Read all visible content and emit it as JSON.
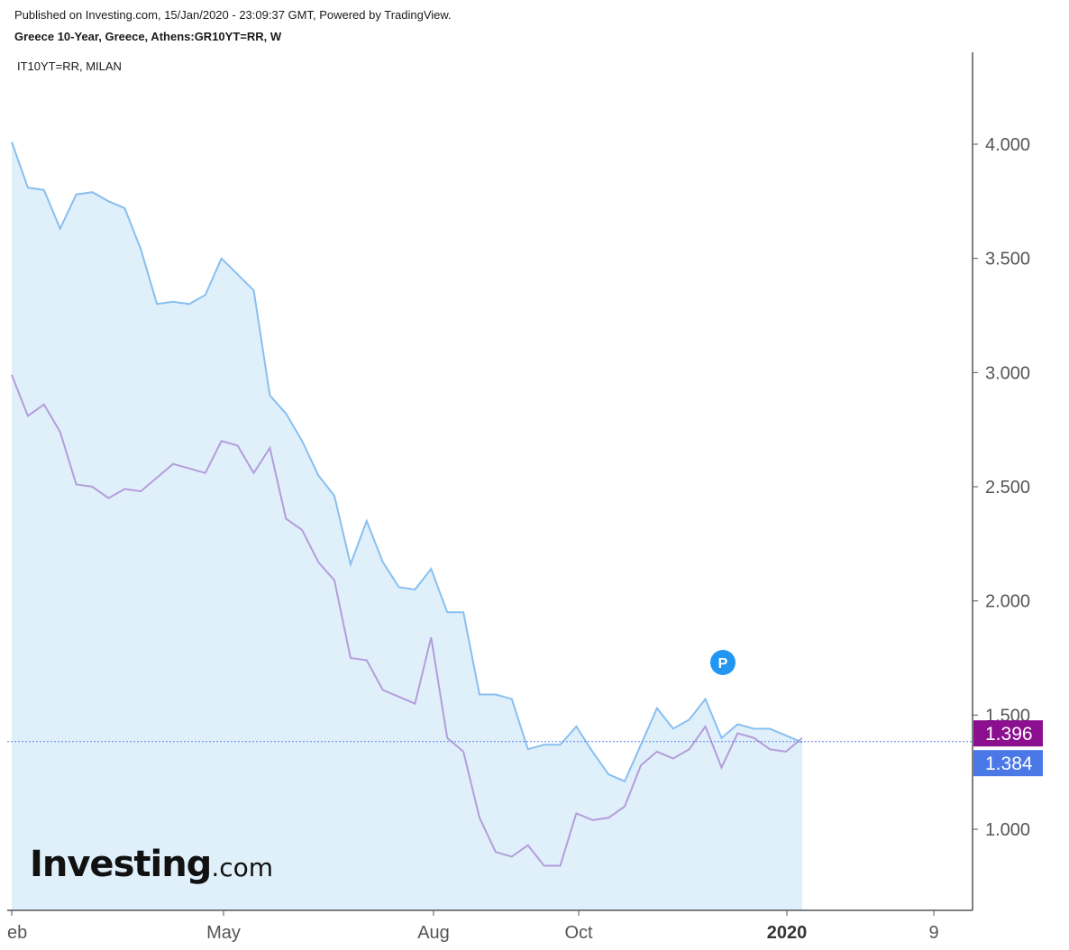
{
  "header": {
    "published": "Published on Investing.com, 15/Jan/2020 - 23:09:37 GMT, Powered by TradingView.",
    "subtitle": "Greece 10-Year, Greece, Athens:GR10YT=RR, W",
    "compare_symbol": "IT10YT=RR, MILAN"
  },
  "logo": {
    "main": "Investing",
    "suffix": ".com"
  },
  "marker": {
    "label": "P",
    "color": "#2196f3"
  },
  "colors": {
    "greece_line": "#88bff0",
    "greece_fill": "#e0f0fa",
    "italy_line": "#b39ddb",
    "italy_tag": "#8b0f8f",
    "greece_tag": "#4a78e6",
    "axis": "#555555",
    "price_line": "#5b7fe8"
  },
  "chart_data": {
    "type": "line",
    "frequency": "weekly",
    "ylim": [
      0.65,
      4.4
    ],
    "y_ticks": [
      "1.000",
      "1.500",
      "2.000",
      "2.500",
      "3.000",
      "3.500",
      "4.000"
    ],
    "x_tick_labels": [
      "eb",
      "May",
      "Aug",
      "Oct",
      "2020",
      "9"
    ],
    "bold_x_tick": "2020",
    "last_values": {
      "italy": "1.396",
      "greece": "1.384"
    },
    "series": [
      {
        "name": "Greece 10-Year",
        "type": "area",
        "values": [
          4.01,
          3.81,
          3.8,
          3.63,
          3.78,
          3.79,
          3.75,
          3.72,
          3.54,
          3.3,
          3.31,
          3.3,
          3.34,
          3.5,
          3.43,
          3.36,
          2.9,
          2.82,
          2.7,
          2.55,
          2.46,
          2.16,
          2.35,
          2.17,
          2.06,
          2.05,
          2.14,
          1.95,
          1.95,
          1.59,
          1.59,
          1.57,
          1.35,
          1.37,
          1.37,
          1.45,
          1.34,
          1.24,
          1.21,
          1.37,
          1.53,
          1.44,
          1.48,
          1.57,
          1.4,
          1.46,
          1.44,
          1.44,
          1.41,
          1.38
        ]
      },
      {
        "name": "IT10YT=RR, MILAN",
        "type": "line",
        "values": [
          2.99,
          2.81,
          2.86,
          2.74,
          2.51,
          2.5,
          2.45,
          2.49,
          2.48,
          2.54,
          2.6,
          2.58,
          2.56,
          2.7,
          2.68,
          2.56,
          2.67,
          2.36,
          2.31,
          2.17,
          2.09,
          1.75,
          1.74,
          1.61,
          1.58,
          1.55,
          1.84,
          1.4,
          1.34,
          1.05,
          0.9,
          0.88,
          0.93,
          0.84,
          0.84,
          1.07,
          1.04,
          1.05,
          1.1,
          1.28,
          1.34,
          1.31,
          1.35,
          1.45,
          1.27,
          1.42,
          1.4,
          1.35,
          1.34,
          1.4
        ]
      }
    ]
  }
}
